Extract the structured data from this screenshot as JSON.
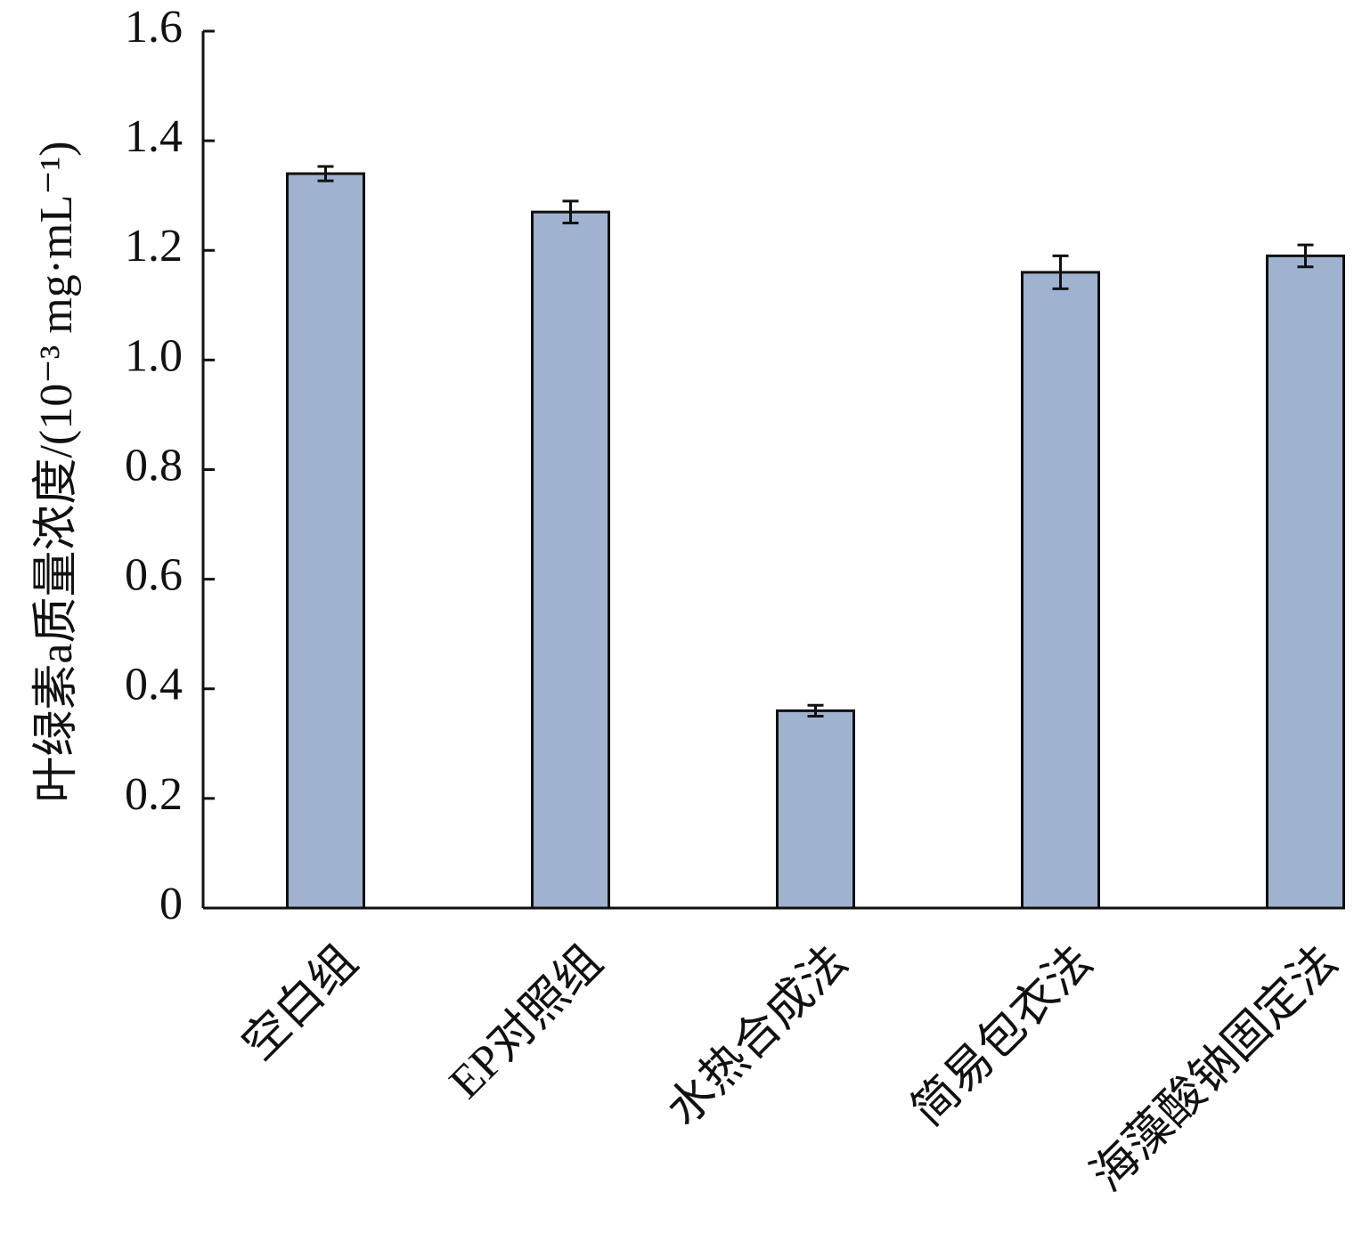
{
  "chart_data": {
    "type": "bar",
    "y_label": "叶绿素a质量浓度/(10⁻³ mg·mL⁻¹)",
    "categories": [
      "空白组",
      "EP对照组",
      "水热合成法",
      "简易包衣法",
      "海藻酸钠固定法"
    ],
    "values": [
      1.34,
      1.27,
      0.36,
      1.16,
      1.19
    ],
    "errors": [
      0.013,
      0.02,
      0.01,
      0.03,
      0.02
    ],
    "color": "#9fb3d0",
    "ylim": [
      0,
      1.6
    ],
    "yticks": [
      0,
      0.2,
      0.4,
      0.6,
      0.8,
      {
        "value": 1,
        "label": "1.0"
      },
      1.2,
      1.4,
      1.6
    ],
    "grid": false
  }
}
